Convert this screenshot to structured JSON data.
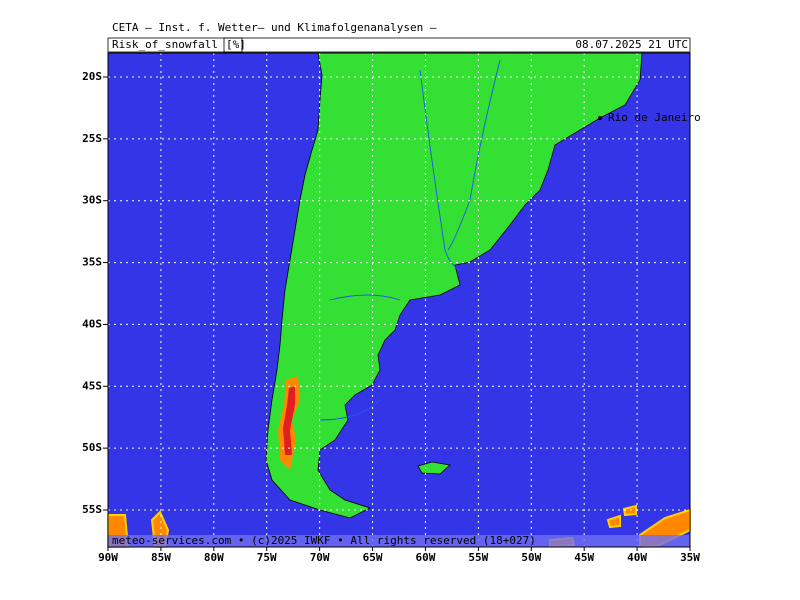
{
  "header": {
    "title": "CETA — Inst. f. Wetter— und Klimafolgenanalysen —",
    "parameter": "Risk_of_snowfall",
    "unit": "[%]",
    "valid_time": "08.07.2025 21 UTC"
  },
  "map": {
    "lat_ticks": [
      {
        "value": -20,
        "label": "20S"
      },
      {
        "value": -25,
        "label": "25S"
      },
      {
        "value": -30,
        "label": "30S"
      },
      {
        "value": -35,
        "label": "35S"
      },
      {
        "value": -40,
        "label": "40S"
      },
      {
        "value": -45,
        "label": "45S"
      },
      {
        "value": -50,
        "label": "50S"
      },
      {
        "value": -55,
        "label": "55S"
      }
    ],
    "lon_ticks": [
      {
        "value": -90,
        "label": "90W"
      },
      {
        "value": -85,
        "label": "85W"
      },
      {
        "value": -80,
        "label": "80W"
      },
      {
        "value": -75,
        "label": "75W"
      },
      {
        "value": -70,
        "label": "70W"
      },
      {
        "value": -65,
        "label": "65W"
      },
      {
        "value": -60,
        "label": "60W"
      },
      {
        "value": -55,
        "label": "55W"
      },
      {
        "value": -50,
        "label": "50W"
      },
      {
        "value": -45,
        "label": "45W"
      },
      {
        "value": -40,
        "label": "40W"
      },
      {
        "value": -35,
        "label": "35W"
      }
    ],
    "city": "Rio de Janeiro"
  },
  "footer": "meteo-services.com • (c)2025 IWKF • All rights reserved (18+027)"
}
